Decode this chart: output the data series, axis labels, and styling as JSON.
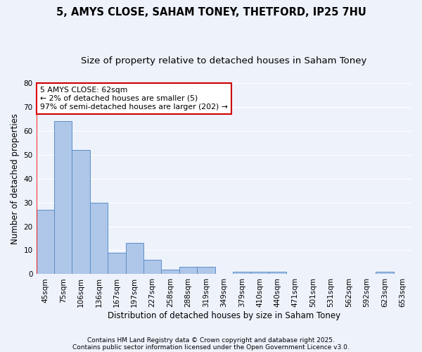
{
  "title1": "5, AMYS CLOSE, SAHAM TONEY, THETFORD, IP25 7HU",
  "title2": "Size of property relative to detached houses in Saham Toney",
  "xlabel": "Distribution of detached houses by size in Saham Toney",
  "ylabel": "Number of detached properties",
  "categories": [
    "45sqm",
    "75sqm",
    "106sqm",
    "136sqm",
    "167sqm",
    "197sqm",
    "227sqm",
    "258sqm",
    "288sqm",
    "319sqm",
    "349sqm",
    "379sqm",
    "410sqm",
    "440sqm",
    "471sqm",
    "501sqm",
    "531sqm",
    "562sqm",
    "592sqm",
    "623sqm",
    "653sqm"
  ],
  "values": [
    27,
    64,
    52,
    30,
    9,
    13,
    6,
    2,
    3,
    3,
    0,
    1,
    1,
    1,
    0,
    0,
    0,
    0,
    0,
    1,
    0
  ],
  "bar_color": "#aec6e8",
  "bar_edge_color": "#5b8fc9",
  "red_line_x": -0.5,
  "annotation_title": "5 AMYS CLOSE: 62sqm",
  "annotation_line1": "← 2% of detached houses are smaller (5)",
  "annotation_line2": "97% of semi-detached houses are larger (202) →",
  "annotation_box_color": "#ffffff",
  "annotation_border_color": "#cc0000",
  "ylim": [
    0,
    80
  ],
  "yticks": [
    0,
    10,
    20,
    30,
    40,
    50,
    60,
    70,
    80
  ],
  "footer1": "Contains HM Land Registry data © Crown copyright and database right 2025.",
  "footer2": "Contains public sector information licensed under the Open Government Licence v3.0.",
  "bg_color": "#eef2fb",
  "grid_color": "#ffffff",
  "title_fontsize": 10.5,
  "subtitle_fontsize": 9.5,
  "axis_label_fontsize": 8.5,
  "tick_fontsize": 7.5,
  "annotation_fontsize": 7.8,
  "footer_fontsize": 6.5
}
